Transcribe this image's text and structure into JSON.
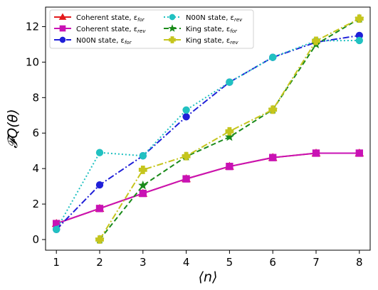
{
  "chart_data": {
    "type": "line",
    "xlabel": "⟨n⟩",
    "ylabel": "𝓕Q(θ)",
    "xlim": [
      0.75,
      8.25
    ],
    "ylim": [
      -0.6,
      13.1
    ],
    "xticks": [
      1,
      2,
      3,
      4,
      5,
      6,
      7,
      8
    ],
    "yticks": [
      0,
      2,
      4,
      6,
      8,
      10,
      12
    ],
    "legend_position": "top-left",
    "grid": false,
    "series": [
      {
        "name": "Coherent state, ε",
        "name_sub": "for",
        "color": "#e41a1c",
        "marker": "triangle",
        "dash": "solid",
        "x": [
          1,
          2,
          3,
          4,
          5,
          6,
          7,
          8
        ],
        "y": [
          0.9,
          1.75,
          2.6,
          3.42,
          4.12,
          4.62,
          4.87,
          4.87
        ]
      },
      {
        "name": "Coherent state, ε",
        "name_sub": "rev",
        "color": "#c912b4",
        "marker": "square",
        "dash": "solid",
        "x": [
          1,
          2,
          3,
          4,
          5,
          6,
          7,
          8
        ],
        "y": [
          0.9,
          1.75,
          2.6,
          3.42,
          4.12,
          4.62,
          4.87,
          4.87
        ]
      },
      {
        "name": "N00N state, ε",
        "name_sub": "for",
        "color": "#1f1fd8",
        "marker": "circle",
        "dash": "dashdot",
        "x": [
          1,
          2,
          3,
          4,
          5,
          6,
          7,
          8
        ],
        "y": [
          0.57,
          3.08,
          4.72,
          6.92,
          8.87,
          10.27,
          11.12,
          11.5
        ]
      },
      {
        "name": "N00N state, ε",
        "name_sub": "rev",
        "color": "#21c1c1",
        "marker": "circle",
        "dash": "dotted",
        "x": [
          1,
          2,
          3,
          4,
          5,
          6,
          7,
          8
        ],
        "y": [
          0.57,
          4.9,
          4.72,
          7.3,
          8.87,
          10.27,
          11.2,
          11.22
        ]
      },
      {
        "name": "King state, ε",
        "name_sub": "for",
        "color": "#1a8a1a",
        "marker": "star",
        "dash": "dashed",
        "x": [
          2,
          3,
          4,
          5,
          6,
          7,
          8
        ],
        "y": [
          0.0,
          3.05,
          4.68,
          5.78,
          7.32,
          11.0,
          12.45
        ]
      },
      {
        "name": "King state, ε",
        "name_sub": "rev",
        "color": "#c5c51d",
        "marker": "plus",
        "dash": "dashdot",
        "x": [
          2,
          3,
          4,
          5,
          6,
          7,
          8
        ],
        "y": [
          0.0,
          3.93,
          4.7,
          6.1,
          7.32,
          11.2,
          12.45
        ]
      }
    ]
  }
}
